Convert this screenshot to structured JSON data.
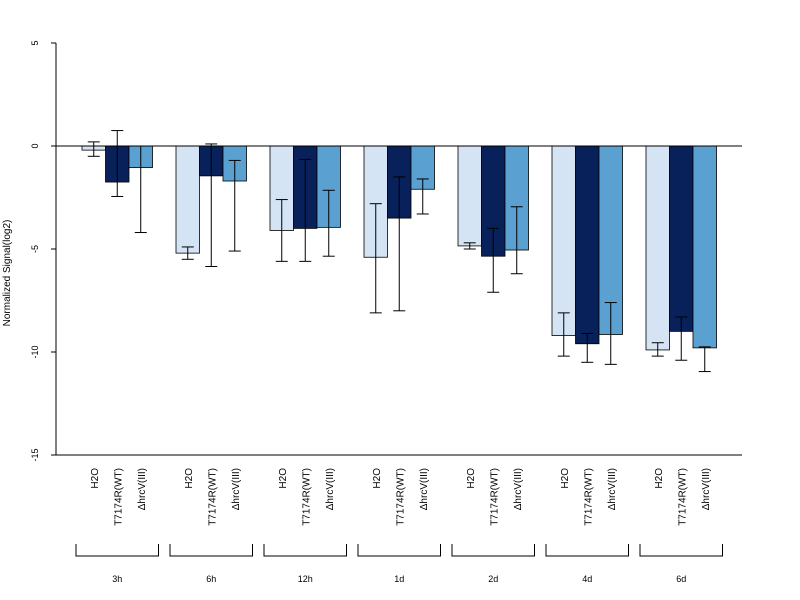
{
  "chart_data": {
    "type": "bar",
    "ylabel": "Normalized Signal(log2)",
    "ylim": [
      -15,
      5
    ],
    "yticks": [
      5,
      0,
      -5,
      -10,
      -15
    ],
    "zero_line": true,
    "groups": [
      "3h",
      "6h",
      "12h",
      "1d",
      "2d",
      "4d",
      "6d"
    ],
    "series": [
      {
        "name": "H2O",
        "color": "#d4e4f4",
        "values": [
          -0.2,
          -5.2,
          -4.1,
          -5.4,
          -4.85,
          -9.2,
          -9.9
        ],
        "err_low": [
          -0.5,
          -5.5,
          -5.6,
          -8.1,
          -5.0,
          -10.2,
          -10.2
        ],
        "err_high": [
          0.2,
          -4.9,
          -2.6,
          -2.8,
          -4.7,
          -8.1,
          -9.55
        ]
      },
      {
        "name": "T7174R(WT)",
        "color": "#08215a",
        "values": [
          -1.75,
          -1.45,
          -4.0,
          -3.5,
          -5.35,
          -9.6,
          -9.0
        ],
        "err_low": [
          -2.45,
          -5.85,
          -5.6,
          -8.0,
          -7.1,
          -10.5,
          -10.4
        ],
        "err_high": [
          0.75,
          0.1,
          -0.65,
          -1.5,
          -4.0,
          -9.1,
          -8.3
        ]
      },
      {
        "name": "ΔhrcV(III)",
        "color": "#5aa0d0",
        "values": [
          -1.05,
          -1.7,
          -3.95,
          -2.1,
          -5.05,
          -9.15,
          -9.8
        ],
        "err_low": [
          -4.2,
          -5.1,
          -5.35,
          -3.3,
          -6.2,
          -10.6,
          -10.95
        ],
        "err_high": [
          0.0,
          -0.7,
          -2.15,
          -1.6,
          -2.95,
          -7.6,
          -9.75
        ]
      }
    ]
  }
}
